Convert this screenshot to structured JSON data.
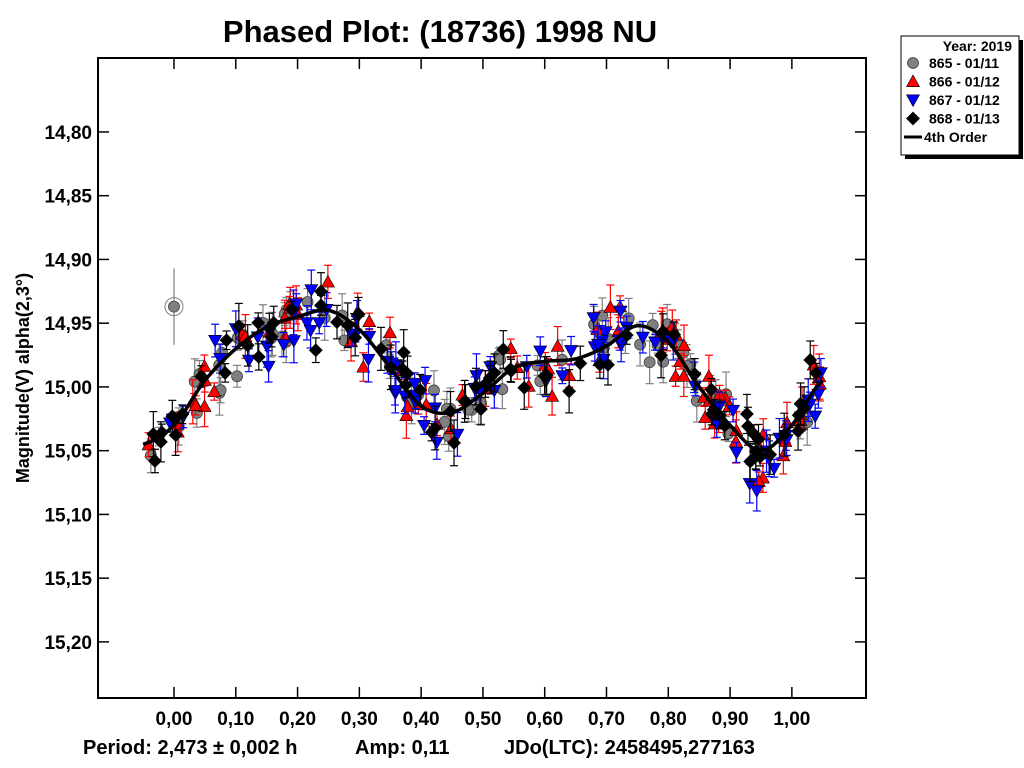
{
  "chart_data": {
    "type": "scatter",
    "title": "Phased Plot: (18736) 1998 NU",
    "xlabel": "",
    "ylabel": "Magnitude(V) alpha(2,3°)",
    "xlim": [
      -0.123,
      1.12
    ],
    "ylim": [
      15.244,
      14.742
    ],
    "y_inverted": true,
    "grid": false,
    "x_ticks": [
      0.0,
      0.1,
      0.2,
      0.3,
      0.4,
      0.5,
      0.6,
      0.7,
      0.8,
      0.9,
      1.0
    ],
    "x_tick_labels": [
      "0,00",
      "0,10",
      "0,20",
      "0,30",
      "0,40",
      "0,50",
      "0,60",
      "0,70",
      "0,80",
      "0,90",
      "1,00"
    ],
    "y_ticks": [
      14.8,
      14.85,
      14.9,
      14.95,
      15.0,
      15.05,
      15.1,
      15.15,
      15.2
    ],
    "y_tick_labels": [
      "14,80",
      "14,85",
      "14,90",
      "14,95",
      "15,00",
      "15,05",
      "15,10",
      "15,15",
      "15,20"
    ],
    "legend": {
      "placement": "top-right-outside",
      "header": "Year: 2019",
      "entries": [
        {
          "label": "865 - 01/11",
          "marker": "circle",
          "color": "#808080"
        },
        {
          "label": "866 - 01/12",
          "marker": "triangle-up",
          "color": "#ff0000"
        },
        {
          "label": "867 - 01/12",
          "marker": "triangle-down",
          "color": "#0000ff"
        },
        {
          "label": "868 - 01/13",
          "marker": "diamond",
          "color": "#000000"
        },
        {
          "label": "4th Order",
          "marker": "line",
          "color": "#000000"
        }
      ]
    },
    "series": [
      {
        "name": "865 - 01/11",
        "marker": "circle",
        "color": "#808080",
        "approximate": true,
        "n_points": 70
      },
      {
        "name": "866 - 01/12",
        "marker": "triangle-up",
        "color": "#ff0000",
        "approximate": true,
        "n_points": 80
      },
      {
        "name": "867 - 01/12",
        "marker": "triangle-down",
        "color": "#0000ff",
        "approximate": true,
        "n_points": 80
      },
      {
        "name": "868 - 01/13",
        "marker": "diamond",
        "color": "#000000",
        "approximate": true,
        "n_points": 80
      }
    ],
    "fit_curve": {
      "name": "4th Order",
      "phase_range": [
        -0.05,
        1.05
      ],
      "key_points": [
        {
          "phase": -0.05,
          "mag": 15.045
        },
        {
          "phase": 0.0,
          "mag": 15.03
        },
        {
          "phase": 0.05,
          "mag": 14.995
        },
        {
          "phase": 0.1,
          "mag": 14.97
        },
        {
          "phase": 0.15,
          "mag": 14.953
        },
        {
          "phase": 0.2,
          "mag": 14.945
        },
        {
          "phase": 0.25,
          "mag": 14.94
        },
        {
          "phase": 0.3,
          "mag": 14.955
        },
        {
          "phase": 0.35,
          "mag": 14.985
        },
        {
          "phase": 0.4,
          "mag": 15.015
        },
        {
          "phase": 0.45,
          "mag": 15.02
        },
        {
          "phase": 0.5,
          "mag": 15.005
        },
        {
          "phase": 0.55,
          "mag": 14.985
        },
        {
          "phase": 0.6,
          "mag": 14.98
        },
        {
          "phase": 0.65,
          "mag": 14.978
        },
        {
          "phase": 0.7,
          "mag": 14.968
        },
        {
          "phase": 0.75,
          "mag": 14.952
        },
        {
          "phase": 0.8,
          "mag": 14.965
        },
        {
          "phase": 0.85,
          "mag": 15.0
        },
        {
          "phase": 0.9,
          "mag": 15.03
        },
        {
          "phase": 0.95,
          "mag": 15.05
        },
        {
          "phase": 1.0,
          "mag": 15.03
        },
        {
          "phase": 1.05,
          "mag": 14.995
        }
      ]
    },
    "annotations": {
      "period": "Period: 2,473 ± 0,002 h",
      "amplitude": "Amp: 0,11",
      "epoch": "JDo(LTC): 2458495,277163"
    }
  },
  "footer": {
    "period": "Period: 2,473 ± 0,002 h",
    "amplitude": "Amp: 0,11",
    "epoch": "JDo(LTC): 2458495,277163"
  }
}
